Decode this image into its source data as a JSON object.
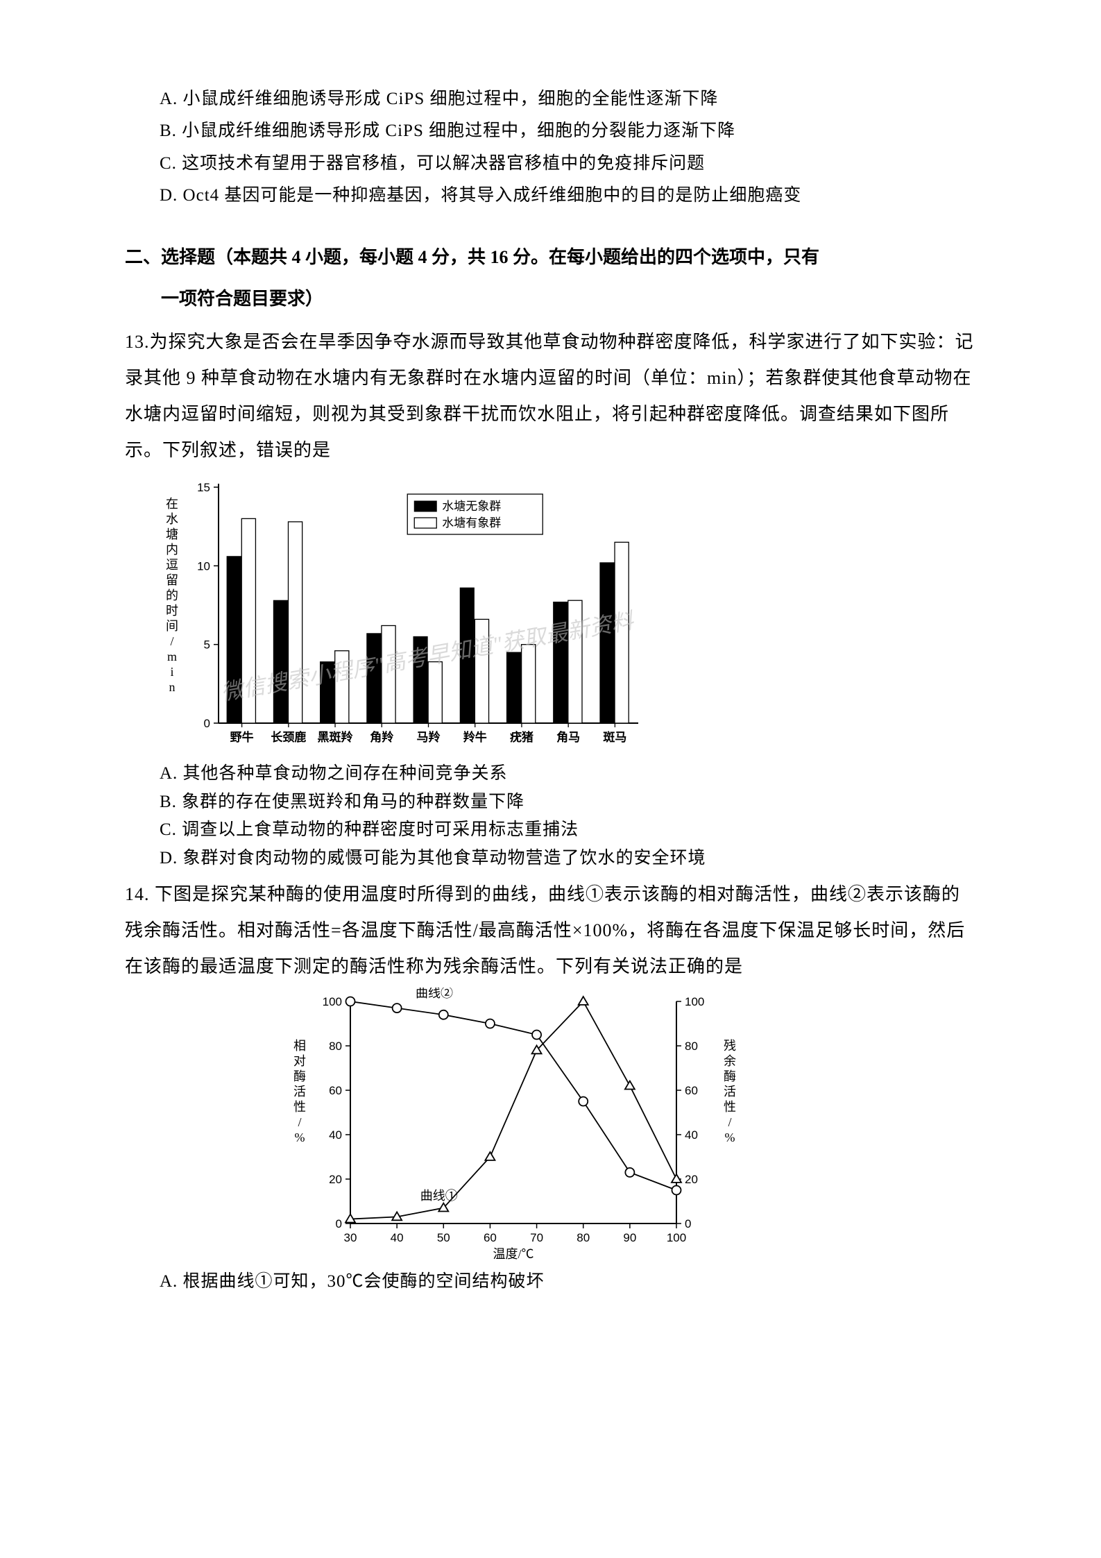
{
  "q12_options": {
    "A": "A. 小鼠成纤维细胞诱导形成 CiPS 细胞过程中，细胞的全能性逐渐下降",
    "B": "B. 小鼠成纤维细胞诱导形成 CiPS 细胞过程中，细胞的分裂能力逐渐下降",
    "C": "C. 这项技术有望用于器官移植，可以解决器官移植中的免疫排斥问题",
    "D": "D. Oct4 基因可能是一种抑癌基因，将其导入成纤维细胞中的目的是防止细胞癌变"
  },
  "section2": {
    "line1": "二、选择题（本题共 4 小题，每小题 4 分，共 16 分。在每小题给出的四个选项中，只有",
    "line2": "一项符合题目要求）"
  },
  "q13": {
    "stem": "13.为探究大象是否会在旱季因争夺水源而导致其他草食动物种群密度降低，科学家进行了如下实验：记录其他 9 种草食动物在水塘内有无象群时在水塘内逗留的时间（单位：min）；若象群使其他食草动物在水塘内逗留时间缩短，则视为其受到象群干扰而饮水阻止，将引起种群密度降低。调查结果如下图所示。下列叙述，错误的是",
    "options": {
      "A": "A. 其他各种草食动物之间存在种间竞争关系",
      "B": "B. 象群的存在使黑斑羚和角马的种群数量下降",
      "C": "C. 调查以上食草动物的种群密度时可采用标志重捕法",
      "D": "D. 象群对食肉动物的威慑可能为其他食草动物营造了饮水的安全环境"
    }
  },
  "chart1": {
    "ylabel": "在水塘内逗留的时间/min",
    "ymax": 15,
    "yticks": [
      0,
      5,
      10,
      15
    ],
    "legend": {
      "no_elephant": "水塘无象群",
      "with_elephant": "水塘有象群"
    },
    "categories": [
      "野牛",
      "长颈鹿",
      "黑斑羚",
      "角羚",
      "马羚",
      "羚牛",
      "疣猪",
      "角马",
      "斑马"
    ],
    "series_no_elephant": [
      10.6,
      7.8,
      3.9,
      5.7,
      5.5,
      8.6,
      4.5,
      7.7,
      10.2
    ],
    "series_with_elephant": [
      13.0,
      12.8,
      4.6,
      6.2,
      3.9,
      6.6,
      5.0,
      7.8,
      11.5
    ],
    "bar_color_black": "#000000",
    "bar_color_white": "#ffffff",
    "fontsize_tick": 17,
    "fontsize_ylabel": 18,
    "fontsize_legend": 17,
    "watermark_text": "微信搜索小程序\"高考早知道\"获取最新资料"
  },
  "q14": {
    "stem": "14. 下图是探究某种酶的使用温度时所得到的曲线，曲线①表示该酶的相对酶活性，曲线②表示该酶的残余酶活性。相对酶活性=各温度下酶活性/最高酶活性×100%，将酶在各温度下保温足够长时间，然后在该酶的最适温度下测定的酶活性称为残余酶活性。下列有关说法正确的是",
    "option_A": "A. 根据曲线①可知，30℃会使酶的空间结构破坏"
  },
  "chart2": {
    "xlabel": "温度/℃",
    "ylabel_left": "相对酶活性/%",
    "ylabel_right": "残余酶活性/%",
    "yticks_left": [
      0,
      20,
      40,
      60,
      80,
      100
    ],
    "yticks_right": [
      0,
      20,
      40,
      60,
      80,
      100
    ],
    "xticks": [
      30,
      40,
      50,
      60,
      70,
      80,
      90,
      100
    ],
    "curve1_label": "曲线①",
    "curve2_label": "曲线②",
    "curve1_x": [
      30,
      40,
      50,
      60,
      70,
      80,
      90,
      100
    ],
    "curve1_y": [
      2,
      3,
      7,
      30,
      78,
      100,
      62,
      20
    ],
    "curve2_x": [
      30,
      40,
      50,
      60,
      70,
      80,
      90,
      100
    ],
    "curve2_y": [
      100,
      97,
      94,
      90,
      85,
      55,
      23,
      15
    ],
    "marker1": "triangle",
    "marker2": "circle",
    "line_color": "#000000",
    "fontsize": 17
  }
}
